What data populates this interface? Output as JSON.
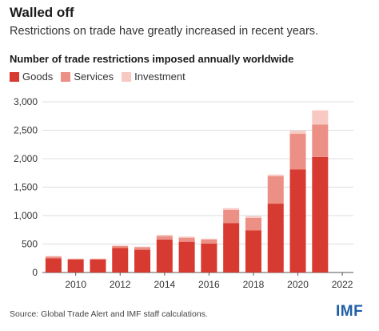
{
  "header": {
    "title": "Walled off",
    "subtitle": "Restrictions on trade have greatly increased in recent years."
  },
  "footer": {
    "source": "Source: Global Trade Alert and IMF staff calculations.",
    "logo": "IMF"
  },
  "chart_data": {
    "type": "bar",
    "stacked": true,
    "title": "Number of trade restrictions imposed annually worldwide",
    "xlabel": "",
    "ylabel": "",
    "categories": [
      "2009",
      "2010",
      "2011",
      "2012",
      "2013",
      "2014",
      "2015",
      "2016",
      "2017",
      "2018",
      "2019",
      "2020",
      "2021",
      "2022"
    ],
    "x_tick_labels": [
      "2010",
      "2012",
      "2014",
      "2016",
      "2018",
      "2020",
      "2022"
    ],
    "y_ticks": [
      0,
      500,
      1000,
      1500,
      2000,
      2500,
      3000
    ],
    "y_tick_labels": [
      "0",
      "500",
      "1,000",
      "1,500",
      "2,000",
      "2,500",
      "3,000"
    ],
    "ylim": [
      0,
      3000
    ],
    "grid": "horizontal",
    "legend_position": "top-left",
    "series": [
      {
        "name": "Goods",
        "color": "#d63a30",
        "values": [
          250,
          225,
          225,
          430,
          400,
          580,
          540,
          510,
          870,
          740,
          1210,
          1810,
          2030,
          0
        ]
      },
      {
        "name": "Services",
        "color": "#ec8f85",
        "values": [
          30,
          15,
          15,
          35,
          45,
          60,
          70,
          70,
          230,
          220,
          480,
          630,
          570,
          0
        ]
      },
      {
        "name": "Investment",
        "color": "#f7c9c2",
        "values": [
          10,
          5,
          5,
          10,
          10,
          20,
          20,
          15,
          30,
          30,
          30,
          50,
          250,
          0
        ]
      }
    ]
  }
}
